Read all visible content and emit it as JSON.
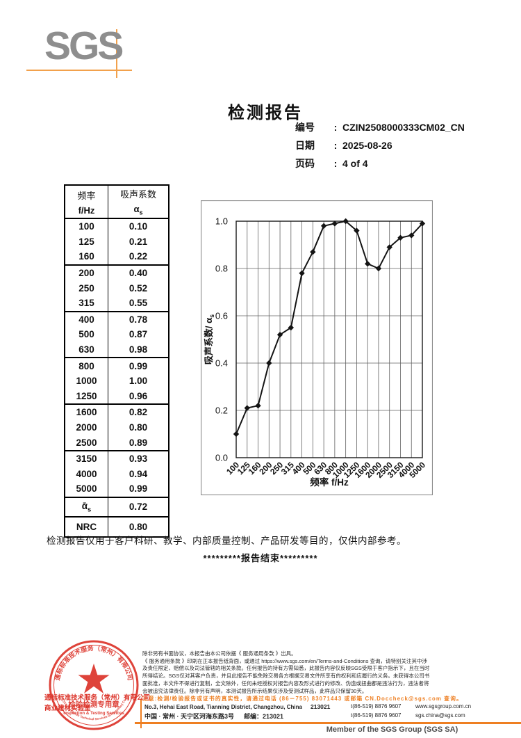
{
  "logo": {
    "text": "SGS"
  },
  "header": {
    "title": "检测报告",
    "meta": [
      {
        "label": "编号",
        "colon": ":",
        "value": "CZIN2508000333CM02_CN"
      },
      {
        "label": "日期",
        "colon": ":",
        "value": "2025-08-26"
      },
      {
        "label": "页码",
        "colon": ":",
        "value": "4 of 4"
      }
    ]
  },
  "table": {
    "col1_line1": "频率",
    "col1_line2": "f/Hz",
    "col2_line1": "吸声系数",
    "col2_line2": "α_{s}",
    "groups": [
      [
        [
          "100",
          "0.10"
        ],
        [
          "125",
          "0.21"
        ],
        [
          "160",
          "0.22"
        ]
      ],
      [
        [
          "200",
          "0.40"
        ],
        [
          "250",
          "0.52"
        ],
        [
          "315",
          "0.55"
        ]
      ],
      [
        [
          "400",
          "0.78"
        ],
        [
          "500",
          "0.87"
        ],
        [
          "630",
          "0.98"
        ]
      ],
      [
        [
          "800",
          "0.99"
        ],
        [
          "1000",
          "1.00"
        ],
        [
          "1250",
          "0.96"
        ]
      ],
      [
        [
          "1600",
          "0.82"
        ],
        [
          "2000",
          "0.80"
        ],
        [
          "2500",
          "0.89"
        ]
      ],
      [
        [
          "3150",
          "0.93"
        ],
        [
          "4000",
          "0.94"
        ],
        [
          "5000",
          "0.99"
        ]
      ]
    ],
    "summary": [
      [
        "ᾱ_{s}",
        "0.72"
      ],
      [
        "NRC",
        "0.80"
      ]
    ]
  },
  "chart_data": {
    "type": "line",
    "categories": [
      "100",
      "125",
      "160",
      "200",
      "250",
      "315",
      "400",
      "500",
      "630",
      "800",
      "1000",
      "1250",
      "1600",
      "2000",
      "2500",
      "3150",
      "4000",
      "5000"
    ],
    "values": [
      0.1,
      0.21,
      0.22,
      0.4,
      0.52,
      0.55,
      0.78,
      0.87,
      0.98,
      0.99,
      1.0,
      0.96,
      0.82,
      0.8,
      0.89,
      0.93,
      0.94,
      0.99
    ],
    "xlabel": "频率 f/Hz",
    "ylabel": "吸声系数/ α_{s}",
    "ylim": [
      0.0,
      1.0
    ],
    "yticks": [
      0.0,
      0.2,
      0.4,
      0.6,
      0.8,
      1.0
    ],
    "grid": true,
    "legend": "none",
    "marker": "diamond",
    "line_color": "#141414"
  },
  "notes": {
    "usage": "检测报告仅用于客户科研、教学、内部质量控制、产品研发等目的，仅供内部参考。",
    "end_line": "*********报告结束*********"
  },
  "stamp": {
    "ring_text_top": "通标标准技术服务（常州）有限公司",
    "ring_text_bottom": "SGS-CSTC Standards Technical Services (Changzhou) Co., Ltd.",
    "line1": "检验检测专用章",
    "line2": "Inspection & Testing Services",
    "overlay_line1": "通标标准技术服务（常州）有限公司",
    "overlay_line2": "商业建材实验室"
  },
  "footer": {
    "terms": [
      "除非另有书面协议，本报告由本公司依据《 服务通用条款 》出具。",
      "《 服务通用条款 》印刷在正本报告纸背面，或通过 https://www.sgs.com/en/Terms-and-Conditions 查询，请特别关注其中涉",
      "及责任限定、赔偿以及司法管辖的相关条款。任何报告的持有方需知悉，此报告内容仅反映SGS受限于客户指示下，且在当时",
      "所得结论。SGS仅对其客户负责，并且此报告不能免除交易各方根据交易文件所享有的权利和应履行的义务。未获得本公司书",
      "面批准，本文件不得进行复制，全文除外，任何未经授权对报告内容及形式进行的修改、伪造或扭曲都是违法行为，违法者将",
      "会被追究法律责任。除非另有声明，本测试报告所示结果仅涉及受测试样品，此样品只保留30天。"
    ],
    "notice": "注意:检测/检验报告或证书的真实性，请通过电话 (86－755) 83071443 或邮箱 CN.Doccheck@sgs.com 查询。",
    "address_en": "No.3, Hehai East Road, Tianning District, Changzhou, China",
    "postcode_en": "213021",
    "address_cn": "中国 · 常州 · 天宁区河海东路3号",
    "postcode_cn": "邮编：213021",
    "phone1": "t(86-519) 8876 9607",
    "phone2": "t(86-519) 8876 9607",
    "web": "www.sgsgroup.com.cn",
    "email": "sgs.china@sgs.com",
    "member": "Member of the SGS Group (SGS SA)"
  }
}
